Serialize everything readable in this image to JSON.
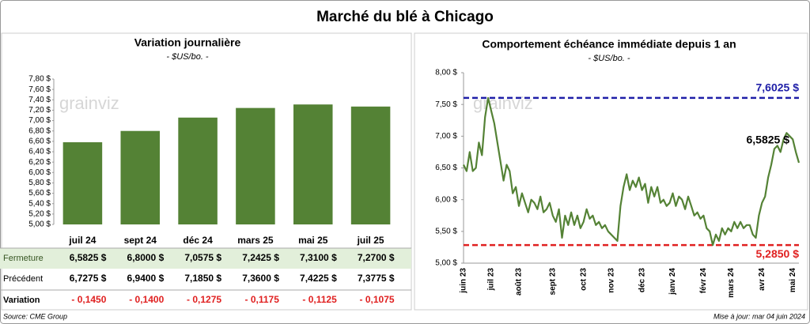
{
  "title": "Marché du blé à Chicago",
  "logo": "grainviz",
  "source": "Source: CME Group",
  "updated": "Mise à jour: mar 04 juin 2024",
  "chart_data": [
    {
      "type": "bar",
      "title": "Variation journalière",
      "subtitle": "- $US/bo. -",
      "categories": [
        "juil 24",
        "sept 24",
        "déc 24",
        "mars 25",
        "mai 25",
        "juil 25"
      ],
      "values": [
        6.5825,
        6.8,
        7.0575,
        7.2425,
        7.31,
        7.27
      ],
      "color": "#548235",
      "ylim": [
        5.0,
        7.8
      ],
      "yticks": [
        {
          "value": 5.0,
          "label": "5,00 $"
        },
        {
          "value": 5.2,
          "label": "5,20 $"
        },
        {
          "value": 5.4,
          "label": "5,40 $"
        },
        {
          "value": 5.6,
          "label": "5,60 $"
        },
        {
          "value": 5.8,
          "label": "5,80 $"
        },
        {
          "value": 6.0,
          "label": "6,00 $"
        },
        {
          "value": 6.2,
          "label": "6,20 $"
        },
        {
          "value": 6.4,
          "label": "6,40 $"
        },
        {
          "value": 6.6,
          "label": "6,60 $"
        },
        {
          "value": 6.8,
          "label": "6,80 $"
        },
        {
          "value": 7.0,
          "label": "7,00 $"
        },
        {
          "value": 7.2,
          "label": "7,20 $"
        },
        {
          "value": 7.4,
          "label": "7,40 $"
        },
        {
          "value": 7.6,
          "label": "7,60 $"
        },
        {
          "value": 7.8,
          "label": "7,80 $"
        }
      ]
    },
    {
      "type": "line",
      "title": "Comportement  échéance immédiate depuis 1 an",
      "subtitle": "- $US/bo. -",
      "categories": [
        "juin 23",
        null,
        null,
        null,
        null,
        null,
        null,
        null,
        null,
        "juil 23",
        null,
        null,
        null,
        null,
        null,
        null,
        null,
        null,
        "août 23",
        null,
        null,
        null,
        null,
        null,
        null,
        null,
        null,
        null,
        null,
        "sept 23",
        null,
        null,
        null,
        null,
        null,
        null,
        null,
        null,
        null,
        "oct 23",
        null,
        null,
        null,
        null,
        null,
        null,
        null,
        null,
        "nov 23",
        null,
        null,
        null,
        null,
        null,
        null,
        null,
        null,
        null,
        "déc 23",
        null,
        null,
        null,
        null,
        null,
        null,
        null,
        null,
        null,
        "janv 24",
        null,
        null,
        null,
        null,
        null,
        null,
        null,
        null,
        null,
        "févr 24",
        null,
        null,
        null,
        null,
        null,
        null,
        null,
        null,
        "mars 24",
        null,
        null,
        null,
        null,
        null,
        null,
        null,
        null,
        null,
        "avr 24",
        null,
        null,
        null,
        null,
        null,
        null,
        null,
        null,
        null,
        "mai 24",
        null,
        null
      ],
      "values": [
        6.55,
        6.45,
        6.75,
        6.45,
        6.5,
        6.9,
        6.7,
        7.3,
        7.6025,
        7.4,
        7.2,
        6.9,
        6.6,
        6.3,
        6.55,
        6.45,
        6.1,
        6.2,
        5.9,
        6.1,
        5.95,
        5.8,
        6.0,
        5.95,
        5.85,
        6.05,
        5.8,
        5.85,
        5.95,
        5.75,
        5.65,
        5.85,
        5.4,
        5.75,
        5.6,
        5.8,
        5.6,
        5.75,
        5.55,
        5.65,
        5.85,
        5.7,
        5.75,
        5.6,
        5.65,
        5.55,
        5.6,
        5.5,
        5.45,
        5.4,
        5.35,
        5.9,
        6.2,
        6.4,
        6.15,
        6.3,
        6.2,
        6.35,
        6.15,
        6.25,
        5.95,
        6.2,
        6.05,
        6.2,
        5.95,
        6.0,
        5.9,
        5.95,
        6.1,
        5.9,
        6.05,
        6.0,
        5.85,
        6.05,
        5.9,
        5.75,
        5.8,
        5.7,
        5.75,
        5.55,
        5.5,
        5.285,
        5.45,
        5.35,
        5.55,
        5.45,
        5.55,
        5.5,
        5.65,
        5.55,
        5.65,
        5.55,
        5.6,
        5.6,
        5.45,
        5.4,
        5.75,
        5.95,
        6.05,
        6.35,
        6.55,
        6.8,
        6.85,
        6.75,
        6.95,
        7.05,
        7.0,
        6.95,
        6.75,
        6.5825
      ],
      "color": "#548235",
      "ylim": [
        5.0,
        8.0
      ],
      "yticks": [
        {
          "value": 5.0,
          "label": "5,00 $"
        },
        {
          "value": 5.5,
          "label": "5,50 $"
        },
        {
          "value": 6.0,
          "label": "6,00 $"
        },
        {
          "value": 6.5,
          "label": "6,50 $"
        },
        {
          "value": 7.0,
          "label": "7,00 $"
        },
        {
          "value": 7.5,
          "label": "7,50 $"
        },
        {
          "value": 8.0,
          "label": "8,00 $"
        }
      ],
      "reference_lines": [
        {
          "value": 7.6025,
          "label": "7,6025 $",
          "color": "#1f1fa8"
        },
        {
          "value": 5.285,
          "label": "5,2850 $",
          "color": "#e02020"
        }
      ],
      "last_label": "6,5825 $"
    }
  ],
  "table": {
    "rows": [
      {
        "label": "Fermeture",
        "cells": [
          "6,5825 $",
          "6,8000 $",
          "7,0575 $",
          "7,2425 $",
          "7,3100 $",
          "7,2700 $"
        ]
      },
      {
        "label": "Précédent",
        "cells": [
          "6,7275 $",
          "6,9400 $",
          "7,1850 $",
          "7,3600 $",
          "7,4225 $",
          "7,3775 $"
        ]
      },
      {
        "label": "Variation",
        "cells": [
          "- 0,1450",
          "- 0,1400",
          "- 0,1275",
          "- 0,1175",
          "- 0,1125",
          "- 0,1075"
        ]
      }
    ]
  }
}
